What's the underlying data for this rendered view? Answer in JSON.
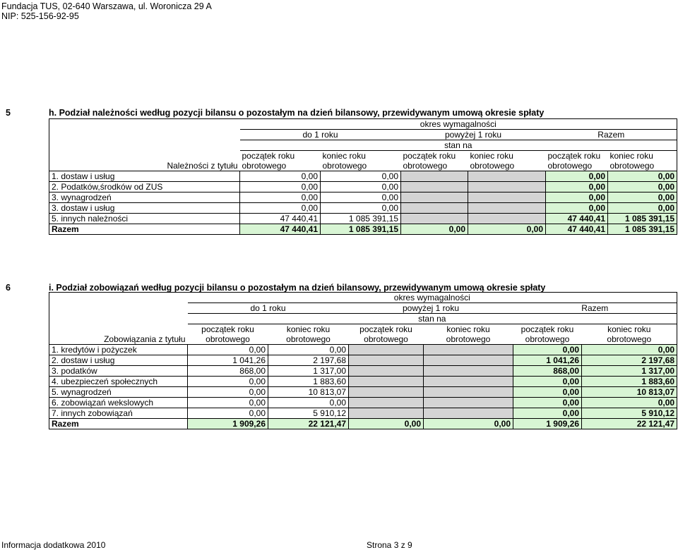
{
  "header": {
    "line1": "Fundacja TUS, 02-640 Warszawa, ul. Woronicza 29 A",
    "line2": "NIP: 525-156-92-95"
  },
  "section5": {
    "number": "5",
    "title": "h. Podział należności  według pozycji bilansu o pozostałym na dzień bilansowy, przewidywanym umową okresie spłaty",
    "okres": "okres wymagalności",
    "group1": "do 1 roku",
    "group2": "powyżej 1 roku",
    "group3": "Razem",
    "stan_na": "stan na",
    "row_label_header": "Należności z tytułu",
    "col_top": [
      "początek roku",
      "koniec roku",
      "początek roku",
      "koniec roku",
      "początek roku",
      "koniec roku"
    ],
    "col_bottom": [
      "obrotowego",
      "obrotowego",
      "obrotowego",
      "obrotowego",
      "obrotowego",
      "obrotowego"
    ],
    "rows": [
      {
        "label": "1. dostaw i usług",
        "v": [
          "0,00",
          "0,00",
          "",
          "",
          "0,00",
          "0,00"
        ]
      },
      {
        "label": "2. Podatków,środków od ZUS",
        "v": [
          "0,00",
          "0,00",
          "",
          "",
          "0,00",
          "0,00"
        ]
      },
      {
        "label": "3. wynagrodzeń",
        "v": [
          "0,00",
          "0,00",
          "",
          "",
          "0,00",
          "0,00"
        ]
      },
      {
        "label": "3. dostaw i usług",
        "v": [
          "0,00",
          "0,00",
          "",
          "",
          "0,00",
          "0,00"
        ]
      },
      {
        "label": "5. innych należności",
        "v": [
          "47 440,41",
          "1 085 391,15",
          "",
          "",
          "47 440,41",
          "1 085 391,15"
        ]
      }
    ],
    "total": {
      "label": "Razem",
      "v": [
        "47 440,41",
        "1 085 391,15",
        "0,00",
        "0,00",
        "47 440,41",
        "1 085 391,15"
      ]
    }
  },
  "section6": {
    "number": "6",
    "title": "i. Podział zobowiązań według pozycji bilansu o pozostałym na dzień bilansowy, przewidywanym umową okresie spłaty",
    "okres": "okres wymagalności",
    "group1": "do 1 roku",
    "group2": "powyżej 1 roku",
    "group3": "Razem",
    "stan_na": "stan na",
    "row_label_header": "Zobowiązania z tytułu",
    "col_top": [
      "początek roku",
      "koniec roku",
      "początek roku",
      "koniec roku",
      "początek roku",
      "koniec roku"
    ],
    "col_bottom": [
      "obrotowego",
      "obrotowego",
      "obrotowego",
      "obrotowego",
      "obrotowego",
      "obrotowego"
    ],
    "rows": [
      {
        "label": "1. kredytów i pożyczek",
        "v": [
          "0,00",
          "0,00",
          "",
          "",
          "0,00",
          "0,00"
        ]
      },
      {
        "label": "2. dostaw i usług",
        "v": [
          "1 041,26",
          "2 197,68",
          "",
          "",
          "1 041,26",
          "2 197,68"
        ]
      },
      {
        "label": "3. podatków",
        "v": [
          "868,00",
          "1 317,00",
          "",
          "",
          "868,00",
          "1 317,00"
        ]
      },
      {
        "label": "4. ubezpieczeń społecznych",
        "v": [
          "0,00",
          "1 883,60",
          "",
          "",
          "0,00",
          "1 883,60"
        ]
      },
      {
        "label": "5. wynagrodzeń",
        "v": [
          "0,00",
          "10 813,07",
          "",
          "",
          "0,00",
          "10 813,07"
        ]
      },
      {
        "label": "6. zobowiązań wekslowych",
        "v": [
          "0,00",
          "0,00",
          "",
          "",
          "0,00",
          "0,00"
        ]
      },
      {
        "label": "7. innych zobowiązań",
        "v": [
          "0,00",
          "5 910,12",
          "",
          "",
          "0,00",
          "5 910,12"
        ]
      }
    ],
    "total": {
      "label": "Razem",
      "v": [
        "1 909,26",
        "22 121,47",
        "0,00",
        "0,00",
        "1 909,26",
        "22 121,47"
      ]
    }
  },
  "footer": {
    "left": "Informacja dodatkowa 2010",
    "center": "Strona 3 z 9"
  }
}
